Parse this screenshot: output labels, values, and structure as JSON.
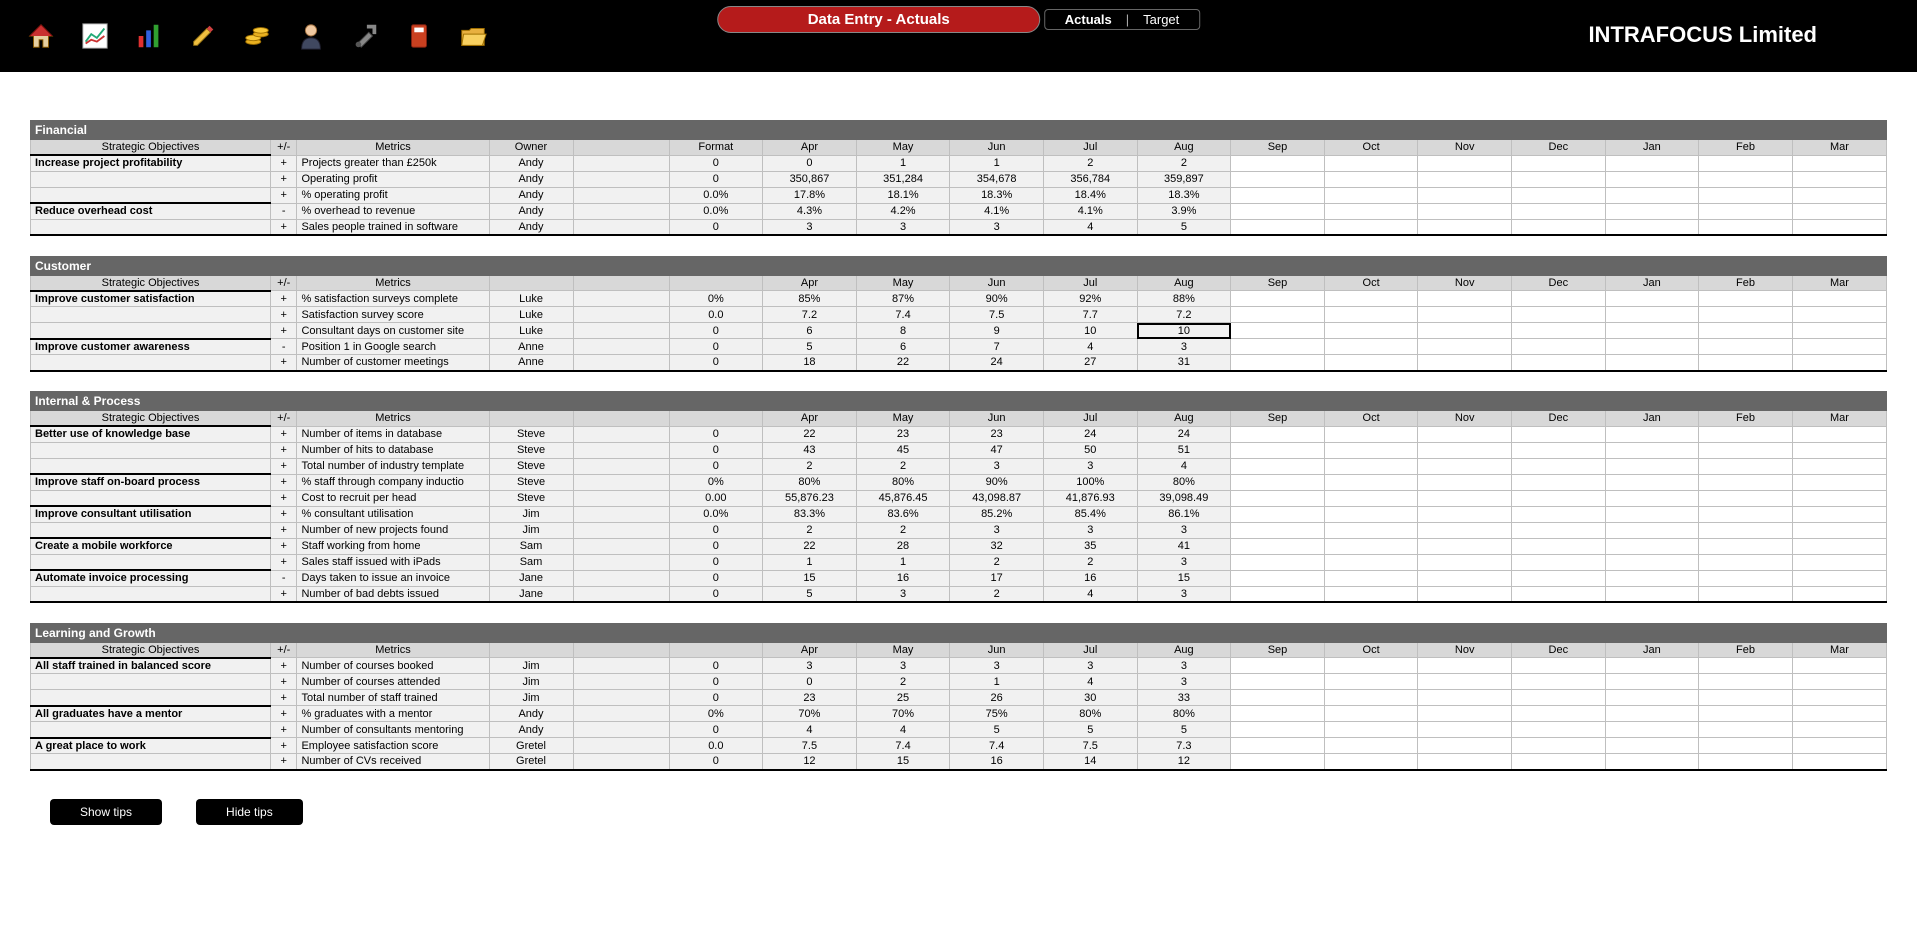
{
  "company": "INTRAFOCUS Limited",
  "header": {
    "title": "Data Entry - Actuals",
    "tabs": {
      "active": "Actuals",
      "other": "Target",
      "sep": "|"
    }
  },
  "toolbar": {
    "icons": [
      "home",
      "chart",
      "bars",
      "pencil",
      "coins",
      "person",
      "tools",
      "book",
      "folder"
    ]
  },
  "columns": {
    "obj": "Strategic Objectives",
    "pm": "+/-",
    "met": "Metrics",
    "own": "Owner",
    "fmt": "Format",
    "months": [
      "Apr",
      "May",
      "Jun",
      "Jul",
      "Aug",
      "Sep",
      "Oct",
      "Nov",
      "Dec",
      "Jan",
      "Feb",
      "Mar"
    ]
  },
  "footer": {
    "show": "Show tips",
    "hide": "Hide tips"
  },
  "selectedCell": {
    "section": 1,
    "row": 2,
    "month": 4
  },
  "sections": [
    {
      "title": "Financial",
      "showOwner": true,
      "showFormat": true,
      "rows": [
        {
          "obj": "Increase project profitability",
          "pm": "+",
          "met": "Projects greater than £250k",
          "own": "Andy",
          "fmt": "0",
          "vals": [
            "0",
            "1",
            "1",
            "2",
            "2",
            "",
            "",
            "",
            "",
            "",
            "",
            ""
          ]
        },
        {
          "obj": "",
          "pm": "+",
          "met": "Operating profit",
          "own": "Andy",
          "fmt": "0",
          "vals": [
            "350,867",
            "351,284",
            "354,678",
            "356,784",
            "359,897",
            "",
            "",
            "",
            "",
            "",
            "",
            ""
          ]
        },
        {
          "obj": "",
          "pm": "+",
          "met": "% operating profit",
          "own": "Andy",
          "fmt": "0.0%",
          "vals": [
            "17.8%",
            "18.1%",
            "18.3%",
            "18.4%",
            "18.3%",
            "",
            "",
            "",
            "",
            "",
            "",
            ""
          ]
        },
        {
          "obj": "Reduce overhead cost",
          "pm": "-",
          "met": "% overhead to revenue",
          "own": "Andy",
          "fmt": "0.0%",
          "vals": [
            "4.3%",
            "4.2%",
            "4.1%",
            "4.1%",
            "3.9%",
            "",
            "",
            "",
            "",
            "",
            "",
            ""
          ]
        },
        {
          "obj": "",
          "pm": "+",
          "met": "Sales people trained in software",
          "own": "Andy",
          "fmt": "0",
          "vals": [
            "3",
            "3",
            "3",
            "4",
            "5",
            "",
            "",
            "",
            "",
            "",
            "",
            ""
          ]
        }
      ]
    },
    {
      "title": "Customer",
      "showOwner": false,
      "showFormat": false,
      "rows": [
        {
          "obj": "Improve customer satisfaction",
          "pm": "+",
          "met": "% satisfaction surveys complete",
          "own": "Luke",
          "fmt": "0%",
          "vals": [
            "85%",
            "87%",
            "90%",
            "92%",
            "88%",
            "",
            "",
            "",
            "",
            "",
            "",
            ""
          ]
        },
        {
          "obj": "",
          "pm": "+",
          "met": "Satisfaction survey score",
          "own": "Luke",
          "fmt": "0.0",
          "vals": [
            "7.2",
            "7.4",
            "7.5",
            "7.7",
            "7.2",
            "",
            "",
            "",
            "",
            "",
            "",
            ""
          ]
        },
        {
          "obj": "",
          "pm": "+",
          "met": "Consultant days on customer site",
          "own": "Luke",
          "fmt": "0",
          "vals": [
            "6",
            "8",
            "9",
            "10",
            "10",
            "",
            "",
            "",
            "",
            "",
            "",
            ""
          ]
        },
        {
          "obj": "Improve customer awareness",
          "pm": "-",
          "met": "Position 1 in Google search",
          "own": "Anne",
          "fmt": "0",
          "vals": [
            "5",
            "6",
            "7",
            "4",
            "3",
            "",
            "",
            "",
            "",
            "",
            "",
            ""
          ]
        },
        {
          "obj": "",
          "pm": "+",
          "met": "Number of customer meetings",
          "own": "Anne",
          "fmt": "0",
          "vals": [
            "18",
            "22",
            "24",
            "27",
            "31",
            "",
            "",
            "",
            "",
            "",
            "",
            ""
          ]
        }
      ]
    },
    {
      "title": "Internal & Process",
      "showOwner": false,
      "showFormat": false,
      "rows": [
        {
          "obj": "Better use of knowledge base",
          "pm": "+",
          "met": "Number of items in database",
          "own": "Steve",
          "fmt": "0",
          "vals": [
            "22",
            "23",
            "23",
            "24",
            "24",
            "",
            "",
            "",
            "",
            "",
            "",
            ""
          ]
        },
        {
          "obj": "",
          "pm": "+",
          "met": "Number of hits to database",
          "own": "Steve",
          "fmt": "0",
          "vals": [
            "43",
            "45",
            "47",
            "50",
            "51",
            "",
            "",
            "",
            "",
            "",
            "",
            ""
          ]
        },
        {
          "obj": "",
          "pm": "+",
          "met": "Total number of industry template",
          "own": "Steve",
          "fmt": "0",
          "vals": [
            "2",
            "2",
            "3",
            "3",
            "4",
            "",
            "",
            "",
            "",
            "",
            "",
            ""
          ]
        },
        {
          "obj": "Improve staff on-board process",
          "pm": "+",
          "met": "% staff through company inductio",
          "own": "Steve",
          "fmt": "0%",
          "vals": [
            "80%",
            "80%",
            "90%",
            "100%",
            "80%",
            "",
            "",
            "",
            "",
            "",
            "",
            ""
          ]
        },
        {
          "obj": "",
          "pm": "+",
          "met": "Cost to recruit per head",
          "own": "Steve",
          "fmt": "0.00",
          "vals": [
            "55,876.23",
            "45,876.45",
            "43,098.87",
            "41,876.93",
            "39,098.49",
            "",
            "",
            "",
            "",
            "",
            "",
            ""
          ]
        },
        {
          "obj": "Improve consultant utilisation",
          "pm": "+",
          "met": "% consultant utilisation",
          "own": "Jim",
          "fmt": "0.0%",
          "vals": [
            "83.3%",
            "83.6%",
            "85.2%",
            "85.4%",
            "86.1%",
            "",
            "",
            "",
            "",
            "",
            "",
            ""
          ]
        },
        {
          "obj": "",
          "pm": "+",
          "met": "Number of new projects found",
          "own": "Jim",
          "fmt": "0",
          "vals": [
            "2",
            "2",
            "3",
            "3",
            "3",
            "",
            "",
            "",
            "",
            "",
            "",
            ""
          ]
        },
        {
          "obj": "Create a mobile workforce",
          "pm": "+",
          "met": "Staff working from home",
          "own": "Sam",
          "fmt": "0",
          "vals": [
            "22",
            "28",
            "32",
            "35",
            "41",
            "",
            "",
            "",
            "",
            "",
            "",
            ""
          ]
        },
        {
          "obj": "",
          "pm": "+",
          "met": "Sales staff issued with iPads",
          "own": "Sam",
          "fmt": "0",
          "vals": [
            "1",
            "1",
            "2",
            "2",
            "3",
            "",
            "",
            "",
            "",
            "",
            "",
            ""
          ]
        },
        {
          "obj": "Automate invoice processing",
          "pm": "-",
          "met": "Days taken to issue an invoice",
          "own": "Jane",
          "fmt": "0",
          "vals": [
            "15",
            "16",
            "17",
            "16",
            "15",
            "",
            "",
            "",
            "",
            "",
            "",
            ""
          ]
        },
        {
          "obj": "",
          "pm": "+",
          "met": "Number of bad debts issued",
          "own": "Jane",
          "fmt": "0",
          "vals": [
            "5",
            "3",
            "2",
            "4",
            "3",
            "",
            "",
            "",
            "",
            "",
            "",
            ""
          ]
        }
      ]
    },
    {
      "title": "Learning and Growth",
      "showOwner": false,
      "showFormat": false,
      "rows": [
        {
          "obj": "All staff trained in balanced score",
          "pm": "+",
          "met": "Number of courses booked",
          "own": "Jim",
          "fmt": "0",
          "vals": [
            "3",
            "3",
            "3",
            "3",
            "3",
            "",
            "",
            "",
            "",
            "",
            "",
            ""
          ]
        },
        {
          "obj": "",
          "pm": "+",
          "met": "Number of courses attended",
          "own": "Jim",
          "fmt": "0",
          "vals": [
            "0",
            "2",
            "1",
            "4",
            "3",
            "",
            "",
            "",
            "",
            "",
            "",
            ""
          ]
        },
        {
          "obj": "",
          "pm": "+",
          "met": "Total number of staff trained",
          "own": "Jim",
          "fmt": "0",
          "vals": [
            "23",
            "25",
            "26",
            "30",
            "33",
            "",
            "",
            "",
            "",
            "",
            "",
            ""
          ]
        },
        {
          "obj": "All graduates have a mentor",
          "pm": "+",
          "met": "% graduates with a mentor",
          "own": "Andy",
          "fmt": "0%",
          "vals": [
            "70%",
            "70%",
            "75%",
            "80%",
            "80%",
            "",
            "",
            "",
            "",
            "",
            "",
            ""
          ]
        },
        {
          "obj": "",
          "pm": "+",
          "met": "Number of consultants mentoring",
          "own": "Andy",
          "fmt": "0",
          "vals": [
            "4",
            "4",
            "5",
            "5",
            "5",
            "",
            "",
            "",
            "",
            "",
            "",
            ""
          ]
        },
        {
          "obj": "A great place to work",
          "pm": "+",
          "met": "Employee satisfaction score",
          "own": "Gretel",
          "fmt": "0.0",
          "vals": [
            "7.5",
            "7.4",
            "7.4",
            "7.5",
            "7.3",
            "",
            "",
            "",
            "",
            "",
            "",
            ""
          ]
        },
        {
          "obj": "",
          "pm": "+",
          "met": "Number of CVs received",
          "own": "Gretel",
          "fmt": "0",
          "vals": [
            "12",
            "15",
            "16",
            "14",
            "12",
            "",
            "",
            "",
            "",
            "",
            "",
            ""
          ]
        }
      ]
    }
  ]
}
